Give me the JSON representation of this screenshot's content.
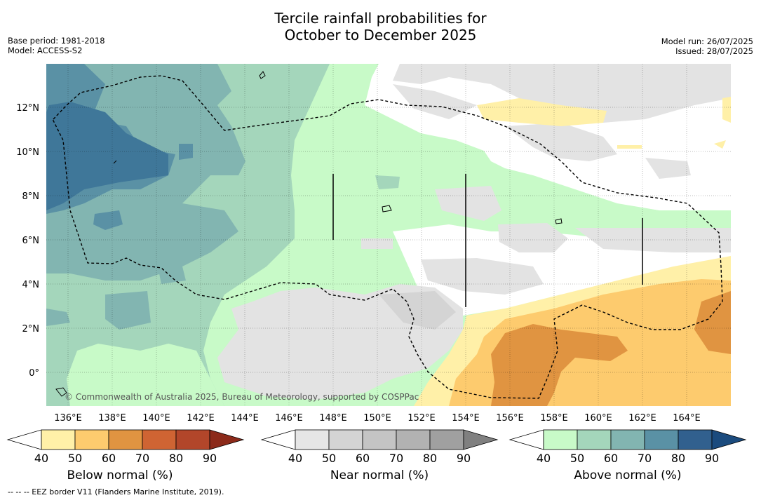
{
  "title_line1": "Tercile rainfall probabilities for",
  "title_line2": "October to December 2025",
  "base_period": "Base period: 1981-2018",
  "model": "Model: ACCESS-S2",
  "model_run": "Model run: 26/07/2025",
  "issued": "Issued: 28/07/2025",
  "copyright": "© Commonwealth of Australia 2025, Bureau of Meteorology, supported by COSPPac",
  "footer": "--  --  -- EEZ border V11 (Flanders Marine Institute, 2019).",
  "map": {
    "lat_labels": [
      "12°N",
      "10°N",
      "8°N",
      "6°N",
      "4°N",
      "2°N",
      "0°"
    ],
    "lon_labels": [
      "136°E",
      "138°E",
      "140°E",
      "142°E",
      "144°E",
      "146°E",
      "148°E",
      "150°E",
      "152°E",
      "154°E",
      "156°E",
      "158°E",
      "160°E",
      "162°E",
      "164°E"
    ]
  },
  "colorbars": [
    {
      "name": "below",
      "title": "Below normal (%)",
      "ticks": [
        "40",
        "50",
        "60",
        "70",
        "80",
        "90"
      ],
      "colors": [
        "#ffffff",
        "#fff0a8",
        "#fdcb6e",
        "#e09441",
        "#cf6433",
        "#b2462a",
        "#8c2a1a"
      ]
    },
    {
      "name": "near",
      "title": "Near normal (%)",
      "ticks": [
        "40",
        "50",
        "60",
        "70",
        "80",
        "90"
      ],
      "colors": [
        "#ffffff",
        "#e6e6e6",
        "#d4d4d4",
        "#c4c4c4",
        "#b2b2b2",
        "#a0a0a0",
        "#808080"
      ]
    },
    {
      "name": "above",
      "title": "Above normal (%)",
      "ticks": [
        "40",
        "50",
        "60",
        "70",
        "80",
        "90"
      ],
      "colors": [
        "#ffffff",
        "#c8fac8",
        "#a4d6bb",
        "#82b5b1",
        "#5a91a5",
        "#31608e",
        "#1b4b7e"
      ]
    }
  ]
}
